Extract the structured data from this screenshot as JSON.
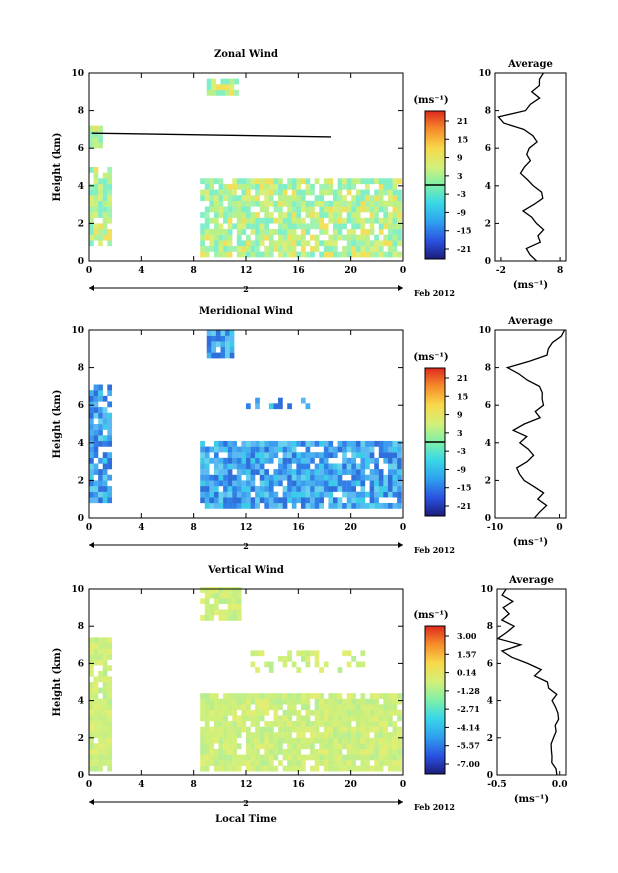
{
  "chart_data": [
    {
      "type": "heatmap",
      "title": "Zonal Wind",
      "ylabel": "Height (km)",
      "xlim": [
        0,
        24
      ],
      "ylim": [
        0,
        10
      ],
      "x_ticks": [
        "0",
        "4",
        "8",
        "12",
        "16",
        "20",
        "0"
      ],
      "y_ticks": [
        "0",
        "2",
        "4",
        "6",
        "8",
        "10"
      ],
      "date_label": "Feb 2012",
      "day_label": "2",
      "colorbar": {
        "unit": "(ms⁻¹)",
        "ticks": [
          "21",
          "15",
          "9",
          "3",
          "-3",
          "-9",
          "-15",
          "-21"
        ]
      },
      "average": {
        "title": "Average",
        "xlabel": "(ms⁻¹)",
        "x_ticks": [
          "-2",
          "8"
        ],
        "xlim": [
          -3,
          9
        ]
      }
    },
    {
      "type": "heatmap",
      "title": "Meridional Wind",
      "ylabel": "Height (km)",
      "xlim": [
        0,
        24
      ],
      "ylim": [
        0,
        10
      ],
      "x_ticks": [
        "0",
        "4",
        "8",
        "12",
        "16",
        "20",
        "0"
      ],
      "y_ticks": [
        "0",
        "2",
        "4",
        "6",
        "8",
        "10"
      ],
      "date_label": "Feb 2012",
      "day_label": "2",
      "colorbar": {
        "unit": "(ms⁻¹)",
        "ticks": [
          "21",
          "15",
          "9",
          "3",
          "-3",
          "-9",
          "-15",
          "-21"
        ]
      },
      "average": {
        "title": "Average",
        "xlabel": "(ms⁻¹)",
        "x_ticks": [
          "-10",
          "0"
        ],
        "xlim": [
          -10,
          1
        ]
      }
    },
    {
      "type": "heatmap",
      "title": "Vertical Wind",
      "ylabel": "Height (km)",
      "xlabel": "Local Time",
      "xlim": [
        0,
        24
      ],
      "ylim": [
        0,
        10
      ],
      "x_ticks": [
        "0",
        "4",
        "8",
        "12",
        "16",
        "20",
        "0"
      ],
      "y_ticks": [
        "0",
        "2",
        "4",
        "6",
        "8",
        "10"
      ],
      "date_label": "Feb 2012",
      "day_label": "2",
      "colorbar": {
        "unit": "(ms⁻¹)",
        "ticks": [
          "3.00",
          "1.57",
          "0.14",
          "-1.28",
          "-2.71",
          "-4.14",
          "-5.57",
          "-7.00"
        ]
      },
      "average": {
        "title": "Average",
        "xlabel": "(ms⁻¹)",
        "x_ticks": [
          "-0.5",
          "0.0"
        ],
        "xlim": [
          -0.5,
          0.05
        ]
      }
    }
  ]
}
